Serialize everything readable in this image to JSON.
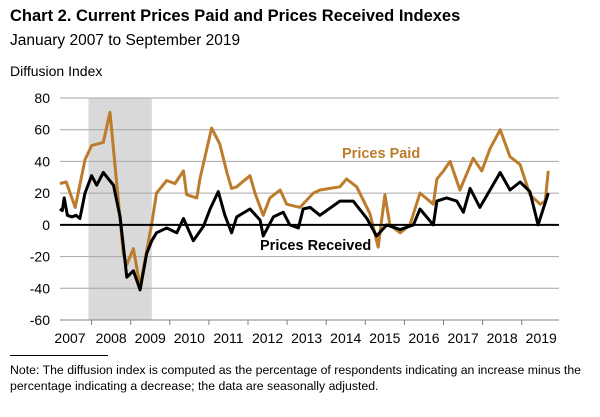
{
  "chart_data": {
    "type": "line",
    "title": "Chart 2. Current Prices Paid and Prices Received Indexes",
    "subtitle": "January 2007 to September 2019",
    "ylabel": "Diffusion Index",
    "xlabel": "",
    "ylim": [
      -60,
      80
    ],
    "yticks": [
      80,
      60,
      40,
      20,
      0,
      -20,
      -40,
      -60
    ],
    "xlim": [
      2007.19,
      2019.9
    ],
    "xtick_labels": [
      "2007",
      "2008",
      "2009",
      "2010",
      "2011",
      "2012",
      "2013",
      "2014",
      "2015",
      "2016",
      "2017",
      "2018",
      "2019"
    ],
    "grid": true,
    "recession_shading": [
      2007.92,
      2009.54
    ],
    "series": [
      {
        "name": "Prices Paid",
        "label": "Prices Paid",
        "color": "#BC7C2C",
        "points": [
          [
            2007.19,
            26
          ],
          [
            2007.35,
            27
          ],
          [
            2007.58,
            11
          ],
          [
            2007.83,
            41
          ],
          [
            2008.0,
            50
          ],
          [
            2008.3,
            52
          ],
          [
            2008.47,
            71
          ],
          [
            2008.81,
            -18
          ],
          [
            2008.9,
            -25
          ],
          [
            2009.07,
            -15
          ],
          [
            2009.24,
            -39
          ],
          [
            2009.54,
            1
          ],
          [
            2009.66,
            20
          ],
          [
            2009.92,
            28
          ],
          [
            2010.13,
            26
          ],
          [
            2010.35,
            34
          ],
          [
            2010.43,
            19
          ],
          [
            2010.69,
            17
          ],
          [
            2010.77,
            29
          ],
          [
            2011.07,
            61
          ],
          [
            2011.28,
            51
          ],
          [
            2011.46,
            33
          ],
          [
            2011.58,
            23
          ],
          [
            2011.71,
            24
          ],
          [
            2012.05,
            31
          ],
          [
            2012.18,
            20
          ],
          [
            2012.39,
            6
          ],
          [
            2012.56,
            17
          ],
          [
            2012.82,
            22
          ],
          [
            2012.99,
            13
          ],
          [
            2013.33,
            11
          ],
          [
            2013.67,
            20
          ],
          [
            2013.84,
            22
          ],
          [
            2014.35,
            24
          ],
          [
            2014.52,
            29
          ],
          [
            2014.78,
            24
          ],
          [
            2015.12,
            7
          ],
          [
            2015.33,
            -14
          ],
          [
            2015.5,
            19
          ],
          [
            2015.63,
            0
          ],
          [
            2015.89,
            -5
          ],
          [
            2016.14,
            0
          ],
          [
            2016.4,
            20
          ],
          [
            2016.74,
            13
          ],
          [
            2016.83,
            29
          ],
          [
            2017.0,
            34
          ],
          [
            2017.17,
            40
          ],
          [
            2017.42,
            22
          ],
          [
            2017.76,
            42
          ],
          [
            2017.98,
            34
          ],
          [
            2018.19,
            48
          ],
          [
            2018.45,
            60
          ],
          [
            2018.7,
            43
          ],
          [
            2018.96,
            38
          ],
          [
            2019.21,
            19
          ],
          [
            2019.47,
            13
          ],
          [
            2019.6,
            15
          ],
          [
            2019.68,
            34
          ]
        ]
      },
      {
        "name": "Prices Received",
        "label": "Prices Received",
        "color": "#000000",
        "points": [
          [
            2007.19,
            10
          ],
          [
            2007.25,
            9
          ],
          [
            2007.3,
            17
          ],
          [
            2007.38,
            6
          ],
          [
            2007.5,
            5
          ],
          [
            2007.6,
            6
          ],
          [
            2007.7,
            4
          ],
          [
            2007.83,
            20
          ],
          [
            2008.0,
            31
          ],
          [
            2008.13,
            25
          ],
          [
            2008.3,
            33
          ],
          [
            2008.56,
            25
          ],
          [
            2008.73,
            5
          ],
          [
            2008.9,
            -33
          ],
          [
            2009.07,
            -29
          ],
          [
            2009.24,
            -41
          ],
          [
            2009.41,
            -18
          ],
          [
            2009.54,
            -10
          ],
          [
            2009.66,
            -5
          ],
          [
            2009.92,
            -2
          ],
          [
            2010.18,
            -5
          ],
          [
            2010.35,
            4
          ],
          [
            2010.6,
            -10
          ],
          [
            2010.86,
            -1
          ],
          [
            2011.03,
            10
          ],
          [
            2011.24,
            21
          ],
          [
            2011.41,
            6
          ],
          [
            2011.58,
            -5
          ],
          [
            2011.71,
            5
          ],
          [
            2012.05,
            10
          ],
          [
            2012.31,
            3
          ],
          [
            2012.39,
            -7
          ],
          [
            2012.65,
            5
          ],
          [
            2012.9,
            8
          ],
          [
            2013.07,
            0
          ],
          [
            2013.29,
            -2
          ],
          [
            2013.41,
            10
          ],
          [
            2013.59,
            11
          ],
          [
            2013.84,
            6
          ],
          [
            2014.35,
            15
          ],
          [
            2014.69,
            15
          ],
          [
            2015.04,
            4
          ],
          [
            2015.29,
            -7
          ],
          [
            2015.55,
            0
          ],
          [
            2015.89,
            -3
          ],
          [
            2016.23,
            0
          ],
          [
            2016.4,
            10
          ],
          [
            2016.74,
            0
          ],
          [
            2016.83,
            15
          ],
          [
            2017.08,
            17
          ],
          [
            2017.34,
            15
          ],
          [
            2017.51,
            8
          ],
          [
            2017.68,
            23
          ],
          [
            2017.93,
            11
          ],
          [
            2018.19,
            22
          ],
          [
            2018.45,
            33
          ],
          [
            2018.7,
            22
          ],
          [
            2018.96,
            27
          ],
          [
            2019.21,
            21
          ],
          [
            2019.42,
            0
          ],
          [
            2019.68,
            20
          ]
        ]
      }
    ],
    "note": "Note: The diffusion index is computed as the percentage of respondents indicating an increase minus the percentage indicating a decrease; the data are seasonally adjusted."
  }
}
